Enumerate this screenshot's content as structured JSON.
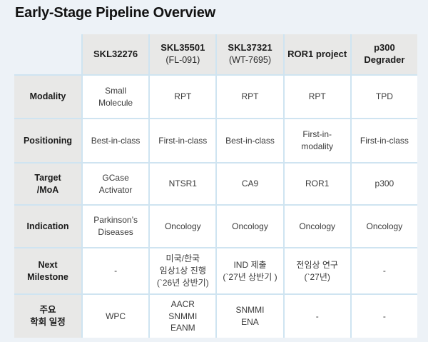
{
  "title": "Early-Stage Pipeline Overview",
  "colors": {
    "page_background": "#edf2f7",
    "header_cell_background": "#e8e8e7",
    "data_cell_background": "#ffffff",
    "grid_border": "#cfe4f1",
    "title_text": "#121212",
    "header_text": "#1b1b1b",
    "body_text": "#3a3a3a"
  },
  "table": {
    "columns": [
      {
        "title": "SKL32276",
        "subtitle": ""
      },
      {
        "title": "SKL35501",
        "subtitle": "(FL-091)"
      },
      {
        "title": "SKL37321",
        "subtitle": "(WT-7695)"
      },
      {
        "title": "ROR1 project",
        "subtitle": ""
      },
      {
        "title": "p300 Degrader",
        "subtitle": ""
      }
    ],
    "rows": [
      {
        "label": "Modality",
        "cells": [
          "Small\nMolecule",
          "RPT",
          "RPT",
          "RPT",
          "TPD"
        ]
      },
      {
        "label": "Positioning",
        "cells": [
          "Best-in-class",
          "First-in-class",
          "Best-in-class",
          "First-in-\nmodality",
          "First-in-class"
        ]
      },
      {
        "label": "Target\n/MoA",
        "cells": [
          "GCase\nActivator",
          "NTSR1",
          "CA9",
          "ROR1",
          "p300"
        ]
      },
      {
        "label": "Indication",
        "cells": [
          "Parkinson’s\nDiseases",
          "Oncology",
          "Oncology",
          "Oncology",
          "Oncology"
        ]
      },
      {
        "label": "Next\nMilestone",
        "cells": [
          "-",
          "미국/한국\n임상1상 진행\n(`26년 상반기)",
          "IND 제출\n(`27년 상반기 )",
          "전임상 연구\n(`27년)",
          "-"
        ]
      },
      {
        "label": "주요\n학회 일정",
        "cells": [
          "WPC",
          "AACR\nSNMMI\nEANM",
          "SNMMI\nENA",
          "-",
          "-"
        ]
      }
    ]
  }
}
